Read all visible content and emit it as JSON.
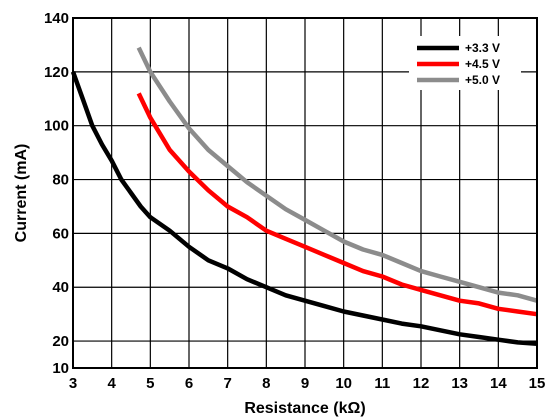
{
  "chart_data": {
    "type": "line",
    "title": "",
    "xlabel": "Resistance (kΩ)",
    "ylabel": "Current (mA)",
    "xlim": [
      3,
      15
    ],
    "ylim": [
      10,
      140
    ],
    "x_ticks": [
      3,
      4,
      5,
      6,
      7,
      8,
      9,
      10,
      11,
      12,
      13,
      14,
      15
    ],
    "y_ticks": [
      10,
      20,
      40,
      60,
      80,
      100,
      120,
      140
    ],
    "grid": true,
    "legend_position": "top-right",
    "series": [
      {
        "name": "+3.3 V",
        "color": "#000000",
        "x": [
          3.0,
          3.25,
          3.5,
          3.75,
          4.0,
          4.25,
          4.5,
          4.75,
          5.0,
          5.5,
          6.0,
          6.5,
          7.0,
          7.5,
          8.0,
          8.5,
          9.0,
          9.5,
          10.0,
          10.5,
          11.0,
          11.5,
          12.0,
          12.5,
          13.0,
          13.5,
          14.0,
          14.5,
          15.0
        ],
        "values": [
          120,
          110,
          100,
          93,
          87,
          80,
          75,
          70,
          66,
          61,
          55,
          50,
          47,
          43,
          40,
          37,
          35,
          33,
          31,
          29.5,
          28,
          26.5,
          25.5,
          24,
          22.5,
          21.5,
          20.5,
          19.5,
          19
        ]
      },
      {
        "name": "+4.5 V",
        "color": "#ff0000",
        "x": [
          4.7,
          5.0,
          5.5,
          6.0,
          6.5,
          7.0,
          7.5,
          8.0,
          8.5,
          9.0,
          9.5,
          10.0,
          10.5,
          11.0,
          11.5,
          12.0,
          12.5,
          13.0,
          13.5,
          14.0,
          14.5,
          15.0
        ],
        "values": [
          112,
          103,
          91,
          83,
          76,
          70,
          66,
          61,
          58,
          55,
          52,
          49,
          46,
          44,
          41,
          39,
          37,
          35,
          34,
          32,
          31,
          30
        ]
      },
      {
        "name": "+5.0 V",
        "color": "#8c8c8c",
        "x": [
          4.7,
          5.0,
          5.5,
          6.0,
          6.5,
          7.0,
          7.5,
          8.0,
          8.5,
          9.0,
          9.5,
          10.0,
          10.5,
          11.0,
          11.5,
          12.0,
          12.5,
          13.0,
          13.5,
          14.0,
          14.5,
          15.0
        ],
        "values": [
          129,
          120,
          109,
          99,
          91,
          85,
          79,
          74,
          69,
          65,
          61,
          57,
          54,
          52,
          49,
          46,
          44,
          42,
          40,
          38,
          37,
          35
        ]
      }
    ]
  }
}
